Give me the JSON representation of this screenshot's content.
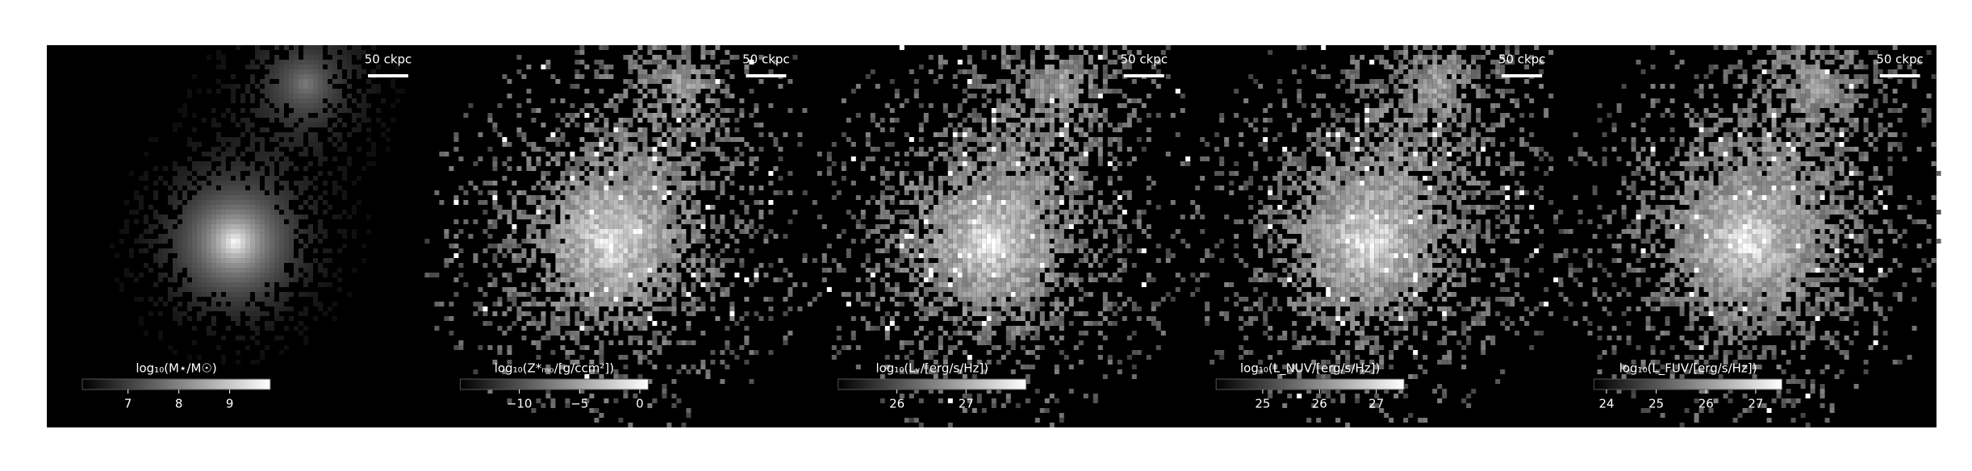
{
  "chart_data": [
    {
      "type": "image",
      "colorbar_label": "log₁₀(M⋆/M☉)",
      "clim": [
        6.1,
        9.8
      ],
      "cticks": [
        7,
        8,
        9
      ],
      "scalebar_label": "50 ckpc"
    },
    {
      "type": "image",
      "colorbar_label": "log₁₀(Z*ₘₒ/[g/ccm²])",
      "clim": [
        -14.9,
        0.7
      ],
      "cticks": [
        {
          "value": -10,
          "label": "−10"
        },
        {
          "value": -5,
          "label": "−5"
        },
        0
      ],
      "scalebar_label": "50 ckpc"
    },
    {
      "type": "image",
      "colorbar_label": "log₁₀(Lᵥ/[erg/s/Hz])",
      "clim": [
        25.15,
        27.87
      ],
      "cticks": [
        26,
        27
      ],
      "scalebar_label": "50 ckpc"
    },
    {
      "type": "image",
      "colorbar_label": "log₁₀(L_NUV/[erg/s/Hz])",
      "clim": [
        24.18,
        27.49
      ],
      "cticks": [
        25,
        26,
        27
      ],
      "scalebar_label": "50 ckpc"
    },
    {
      "type": "image",
      "colorbar_label": "log₁₀(L_FUV/[erg/s/Hz])",
      "clim": [
        23.75,
        27.53
      ],
      "cticks": [
        24,
        25,
        26,
        27
      ],
      "scalebar_label": "50 ckpc"
    }
  ]
}
